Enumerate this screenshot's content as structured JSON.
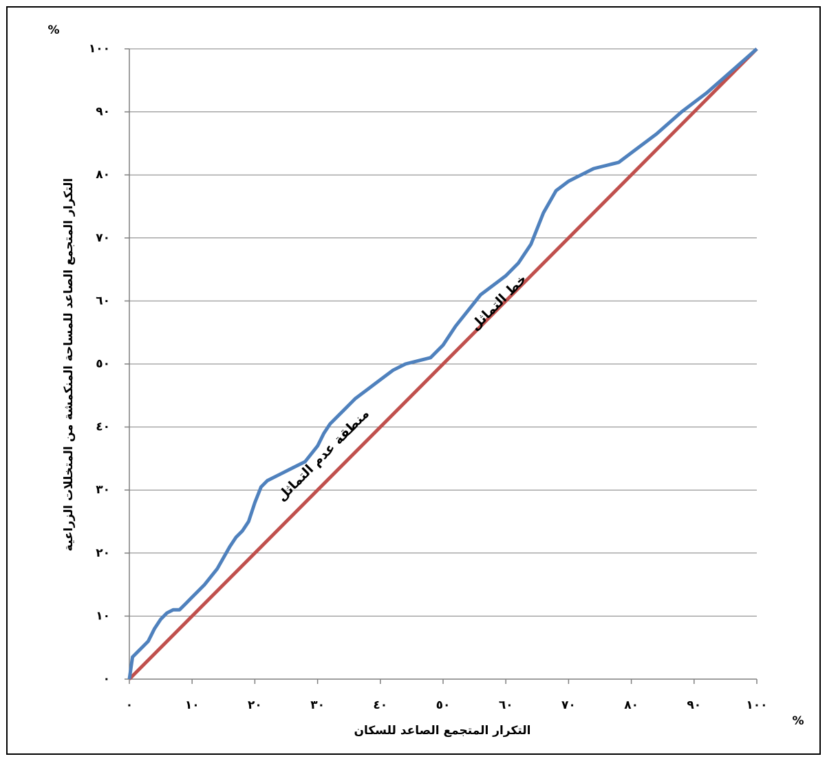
{
  "chart_data": {
    "type": "line",
    "xlabel": "التكرار المتجمع الصاعد للسكان",
    "ylabel": "التكرار المتجمع الصاعد للمساحة المنكمشة من المتخللات الزراعية",
    "x_unit": "%",
    "y_unit": "%",
    "annotations": [
      "خط التماثل",
      "منطقة عدم التماثل"
    ],
    "xlim": [
      0,
      100
    ],
    "ylim": [
      0,
      100
    ],
    "grid": true,
    "xticks": [
      {
        "value": 0,
        "label": "٠"
      },
      {
        "value": 10,
        "label": "١٠"
      },
      {
        "value": 20,
        "label": "٢٠"
      },
      {
        "value": 30,
        "label": "٣٠"
      },
      {
        "value": 40,
        "label": "٤٠"
      },
      {
        "value": 50,
        "label": "٥٠"
      },
      {
        "value": 60,
        "label": "٦٠"
      },
      {
        "value": 70,
        "label": "٧٠"
      },
      {
        "value": 80,
        "label": "٨٠"
      },
      {
        "value": 90,
        "label": "٩٠"
      },
      {
        "value": 100,
        "label": "١٠٠"
      }
    ],
    "yticks": [
      {
        "value": 0,
        "label": "٠"
      },
      {
        "value": 10,
        "label": "١٠"
      },
      {
        "value": 20,
        "label": "٢٠"
      },
      {
        "value": 30,
        "label": "٣٠"
      },
      {
        "value": 40,
        "label": "٤٠"
      },
      {
        "value": 50,
        "label": "٥٠"
      },
      {
        "value": 60,
        "label": "٦٠"
      },
      {
        "value": 70,
        "label": "٧٠"
      },
      {
        "value": 80,
        "label": "٨٠"
      },
      {
        "value": 90,
        "label": "٩٠"
      },
      {
        "value": 100,
        "label": "١٠٠"
      }
    ],
    "series": [
      {
        "color": "#4f81bd",
        "x": [
          0,
          0.5,
          1,
          2,
          3,
          4,
          5,
          6,
          7,
          8,
          9,
          10,
          12,
          14,
          16,
          17,
          18,
          19,
          20,
          21,
          22,
          24,
          26,
          28,
          30,
          31,
          32,
          34,
          36,
          38,
          40,
          42,
          44,
          46,
          48,
          50,
          52,
          54,
          56,
          58,
          60,
          62,
          64,
          66,
          68,
          70,
          72,
          74,
          76,
          78,
          80,
          84,
          88,
          92,
          96,
          100
        ],
        "values": [
          0,
          3.5,
          4,
          5,
          6,
          8,
          9.5,
          10.5,
          11,
          11,
          12,
          13,
          15,
          17.5,
          21,
          22.5,
          23.5,
          25,
          28,
          30.5,
          31.5,
          32.5,
          33.5,
          34.5,
          37,
          39,
          40.5,
          42.5,
          44.5,
          46,
          47.5,
          49,
          50,
          50.5,
          51,
          53,
          56,
          58.5,
          61,
          62.5,
          64,
          66,
          69,
          74,
          77.5,
          79,
          80,
          81,
          81.5,
          82,
          83.5,
          86.5,
          90,
          93,
          96.5,
          100
        ]
      },
      {
        "color": "#c0504d",
        "x": [
          0,
          100
        ],
        "values": [
          0,
          100
        ]
      }
    ]
  }
}
